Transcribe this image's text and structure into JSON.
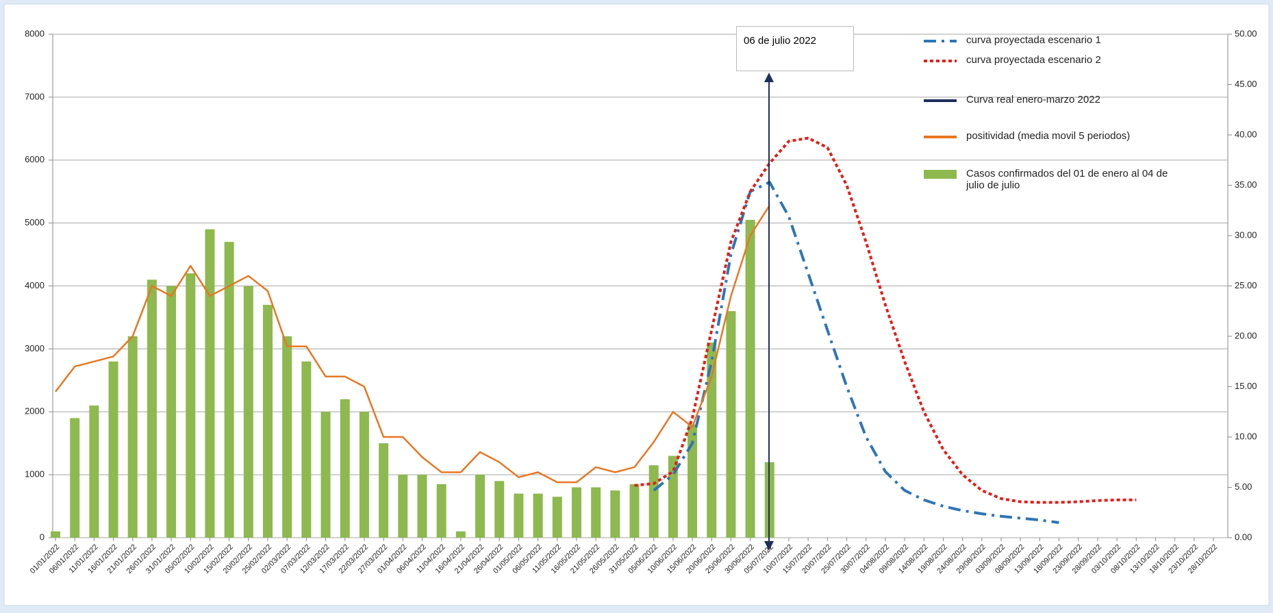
{
  "chart_data": {
    "type": "combo",
    "categories": [
      "01/01/2022",
      "06/01/2022",
      "11/01/2022",
      "16/01/2022",
      "21/01/2022",
      "26/01/2022",
      "31/01/2022",
      "05/02/2022",
      "10/02/2022",
      "15/02/2022",
      "20/02/2022",
      "25/02/2022",
      "02/03/2022",
      "07/03/2022",
      "12/03/2022",
      "17/03/2022",
      "22/03/2022",
      "27/03/2022",
      "01/04/2022",
      "06/04/2022",
      "11/04/2022",
      "16/04/2022",
      "21/04/2022",
      "26/04/2022",
      "01/05/2022",
      "06/05/2022",
      "11/05/2022",
      "16/05/2022",
      "21/05/2022",
      "26/05/2022",
      "31/05/2022",
      "05/06/2022",
      "10/06/2022",
      "15/06/2022",
      "20/06/2022",
      "25/06/2022",
      "30/06/2022",
      "05/07/2022",
      "10/07/2022",
      "15/07/2022",
      "20/07/2022",
      "25/07/2022",
      "30/07/2022",
      "04/08/2022",
      "09/08/2022",
      "14/08/2022",
      "19/08/2022",
      "24/08/2022",
      "29/08/2022",
      "03/09/2022",
      "08/09/2022",
      "13/09/2022",
      "18/09/2022",
      "23/09/2022",
      "28/09/2022",
      "03/10/2022",
      "08/10/2022",
      "13/10/2022",
      "18/10/2022",
      "23/10/2022",
      "28/10/2022"
    ],
    "series": [
      {
        "name": "curva proyectada  escenario 1",
        "type": "line",
        "style": "dashdot",
        "color": "#2e75b6",
        "values": [
          null,
          null,
          null,
          null,
          null,
          null,
          null,
          null,
          null,
          null,
          null,
          null,
          null,
          null,
          null,
          null,
          null,
          null,
          null,
          null,
          null,
          null,
          null,
          null,
          null,
          null,
          null,
          null,
          null,
          null,
          null,
          750,
          1000,
          1500,
          2800,
          4500,
          5500,
          5650,
          5100,
          4200,
          3300,
          2400,
          1600,
          1050,
          750,
          600,
          500,
          430,
          380,
          340,
          310,
          280,
          240,
          null,
          null,
          null,
          null,
          null,
          null,
          null,
          null
        ]
      },
      {
        "name": "curva proyectada escenario 2",
        "type": "line",
        "style": "dotted",
        "color": "#e0201b",
        "values": [
          null,
          null,
          null,
          null,
          null,
          null,
          null,
          null,
          null,
          null,
          null,
          null,
          null,
          null,
          null,
          null,
          null,
          null,
          null,
          null,
          null,
          null,
          null,
          null,
          null,
          null,
          null,
          null,
          null,
          null,
          830,
          860,
          1050,
          1900,
          3300,
          4700,
          5500,
          5950,
          6300,
          6350,
          6200,
          5600,
          4700,
          3700,
          2800,
          2000,
          1400,
          1000,
          750,
          620,
          570,
          560,
          560,
          570,
          590,
          600,
          600,
          null,
          null,
          null,
          null
        ]
      },
      {
        "name": "positividad (media movil 5 periodos)",
        "type": "line",
        "style": "solid",
        "axis": "y2",
        "color": "#e87722",
        "values": [
          14.5,
          17,
          17.5,
          18,
          20,
          25,
          24,
          27,
          24,
          25,
          26,
          24.5,
          19,
          19,
          16,
          16,
          15,
          10,
          10,
          8,
          6.5,
          6.5,
          8.5,
          7.5,
          6,
          6.5,
          5.5,
          5.5,
          7,
          6.5,
          7,
          9.5,
          12.5,
          11,
          16,
          24,
          30,
          33,
          null,
          null,
          null,
          null,
          null,
          null,
          null,
          null,
          null,
          null,
          null,
          null,
          null,
          null,
          null,
          null,
          null,
          null,
          null,
          null,
          null,
          null,
          null
        ]
      },
      {
        "name": "Casos confirmados del 01 de enero al 04 de julio  de julio",
        "type": "bar",
        "color": "#8db94f",
        "values": [
          100,
          1900,
          2100,
          2800,
          3200,
          4100,
          4000,
          4200,
          4900,
          4700,
          4000,
          3700,
          3200,
          2800,
          2000,
          2200,
          2000,
          1500,
          1000,
          1000,
          850,
          100,
          1000,
          900,
          700,
          700,
          650,
          800,
          800,
          750,
          850,
          1150,
          1300,
          1800,
          3100,
          3600,
          5050,
          1200,
          null,
          null,
          null,
          null,
          null,
          null,
          null,
          null,
          null,
          null,
          null,
          null,
          null,
          null,
          null,
          null,
          null,
          null,
          null,
          null,
          null,
          null,
          null
        ]
      }
    ],
    "legend_items": [
      {
        "name": "Curva real enero-marzo 2022",
        "color": "#1f2f5c",
        "after": 1
      }
    ],
    "annotation": "06  de julio 2022",
    "ylim": [
      0,
      8000
    ],
    "yticks": [
      0,
      1000,
      2000,
      3000,
      4000,
      5000,
      6000,
      7000,
      8000
    ],
    "y2lim": [
      0,
      50
    ],
    "y2ticks": [
      {
        "value": 0,
        "label": "0.00"
      },
      {
        "value": 5,
        "label": "5.00"
      },
      {
        "value": 10,
        "label": "10.00"
      },
      {
        "value": 15,
        "label": "15.00"
      },
      {
        "value": 20,
        "label": "20.00"
      },
      {
        "value": 25,
        "label": "25.00"
      },
      {
        "value": 30,
        "label": "30.00"
      },
      {
        "value": 35,
        "label": "35.00"
      },
      {
        "value": 40,
        "label": "40.00"
      },
      {
        "value": 45,
        "label": "45.00"
      },
      {
        "value": 50,
        "label": "50.00"
      }
    ],
    "grid": true
  }
}
